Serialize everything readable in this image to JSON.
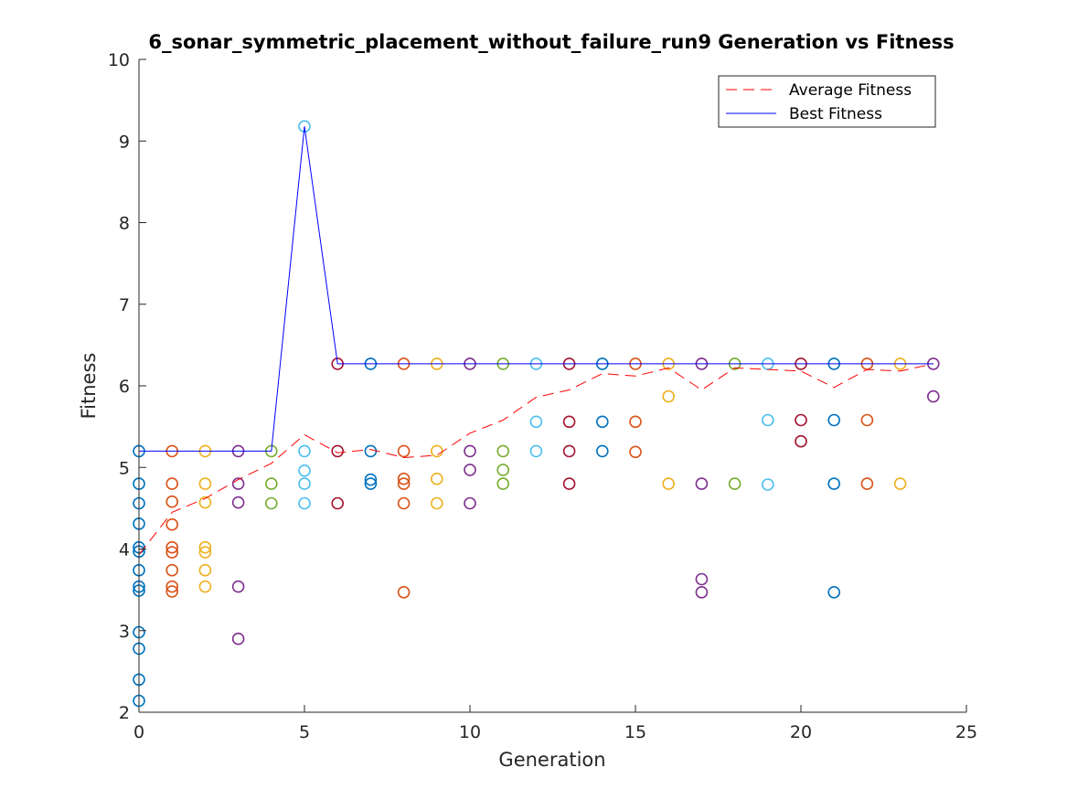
{
  "chart_data": {
    "type": "scatter",
    "title": "6_sonar_symmetric_placement_without_failure_run9 Generation vs Fitness",
    "xlabel": "Generation",
    "ylabel": "Fitness",
    "xlim": [
      0,
      25
    ],
    "ylim": [
      2,
      10
    ],
    "xticks": [
      0,
      5,
      10,
      15,
      20,
      25
    ],
    "yticks": [
      2,
      3,
      4,
      5,
      6,
      7,
      8,
      9,
      10
    ],
    "grid": false,
    "legend_position": "top-right",
    "colors": {
      "average_line": "#ff0000",
      "best_line": "#0000ff",
      "axis": "#262626",
      "palette": [
        "#0072bd",
        "#d95319",
        "#edb120",
        "#7e2f8e",
        "#77ac30",
        "#4dbeee",
        "#a2142f"
      ]
    },
    "series": [
      {
        "name": "Average Fitness",
        "style": "dashed-line",
        "x": [
          0,
          1,
          2,
          3,
          4,
          5,
          6,
          7,
          8,
          9,
          10,
          11,
          12,
          13,
          14,
          15,
          16,
          17,
          18,
          19,
          20,
          21,
          22,
          23,
          24
        ],
        "y": [
          3.93,
          4.45,
          4.62,
          4.85,
          5.05,
          5.4,
          5.18,
          5.22,
          5.12,
          5.15,
          5.42,
          5.58,
          5.86,
          5.95,
          6.15,
          6.12,
          6.22,
          5.95,
          6.22,
          6.2,
          6.18,
          5.98,
          6.2,
          6.18,
          6.27
        ]
      },
      {
        "name": "Best Fitness",
        "style": "solid-line",
        "x": [
          0,
          1,
          2,
          3,
          4,
          5,
          6,
          7,
          8,
          9,
          10,
          11,
          12,
          13,
          14,
          15,
          16,
          17,
          18,
          19,
          20,
          21,
          22,
          23,
          24
        ],
        "y": [
          5.2,
          5.2,
          5.2,
          5.2,
          5.2,
          9.18,
          6.27,
          6.27,
          6.27,
          6.27,
          6.27,
          6.27,
          6.27,
          6.27,
          6.27,
          6.27,
          6.27,
          6.27,
          6.27,
          6.27,
          6.27,
          6.27,
          6.27,
          6.27,
          6.27
        ]
      }
    ],
    "population": [
      {
        "generation": 0,
        "color": "#0072bd",
        "values": [
          5.2,
          4.8,
          4.56,
          4.31,
          4.02,
          3.97,
          3.74,
          3.54,
          3.49,
          2.98,
          2.78,
          2.4,
          2.14
        ]
      },
      {
        "generation": 1,
        "color": "#d95319",
        "values": [
          5.2,
          4.8,
          4.58,
          4.3,
          4.02,
          3.96,
          3.74,
          3.54,
          3.48
        ]
      },
      {
        "generation": 2,
        "color": "#edb120",
        "values": [
          5.2,
          4.8,
          4.57,
          4.02,
          3.96,
          3.74,
          3.54
        ]
      },
      {
        "generation": 3,
        "color": "#7e2f8e",
        "values": [
          5.2,
          4.8,
          4.57,
          3.54,
          2.9
        ]
      },
      {
        "generation": 4,
        "color": "#77ac30",
        "values": [
          5.2,
          4.8,
          4.56
        ]
      },
      {
        "generation": 5,
        "color": "#4dbeee",
        "values": [
          9.18,
          5.2,
          4.96,
          4.8,
          4.56
        ]
      },
      {
        "generation": 6,
        "color": "#a2142f",
        "values": [
          6.27,
          5.2,
          4.56
        ]
      },
      {
        "generation": 7,
        "color": "#0072bd",
        "values": [
          6.27,
          5.2,
          4.85,
          4.8
        ]
      },
      {
        "generation": 8,
        "color": "#d95319",
        "values": [
          6.27,
          5.2,
          4.86,
          4.8,
          4.56,
          3.47
        ]
      },
      {
        "generation": 9,
        "color": "#edb120",
        "values": [
          6.27,
          5.2,
          4.86,
          4.56
        ]
      },
      {
        "generation": 10,
        "color": "#7e2f8e",
        "values": [
          6.27,
          5.2,
          4.97,
          4.56
        ]
      },
      {
        "generation": 11,
        "color": "#77ac30",
        "values": [
          6.27,
          5.2,
          4.97,
          4.8
        ]
      },
      {
        "generation": 12,
        "color": "#4dbeee",
        "values": [
          6.27,
          5.56,
          5.2
        ]
      },
      {
        "generation": 13,
        "color": "#a2142f",
        "values": [
          6.27,
          5.56,
          5.2,
          4.8
        ]
      },
      {
        "generation": 14,
        "color": "#0072bd",
        "values": [
          6.27,
          5.56,
          5.2
        ]
      },
      {
        "generation": 15,
        "color": "#d95319",
        "values": [
          6.27,
          5.56,
          5.19
        ]
      },
      {
        "generation": 16,
        "color": "#edb120",
        "values": [
          6.27,
          5.87,
          4.8
        ]
      },
      {
        "generation": 17,
        "color": "#7e2f8e",
        "values": [
          6.27,
          4.8,
          3.63,
          3.47
        ]
      },
      {
        "generation": 18,
        "color": "#77ac30",
        "values": [
          6.27,
          4.8
        ]
      },
      {
        "generation": 19,
        "color": "#4dbeee",
        "values": [
          6.27,
          5.58,
          4.79
        ]
      },
      {
        "generation": 20,
        "color": "#a2142f",
        "values": [
          6.27,
          5.58,
          5.32
        ]
      },
      {
        "generation": 21,
        "color": "#0072bd",
        "values": [
          6.27,
          5.58,
          4.8,
          3.47
        ]
      },
      {
        "generation": 22,
        "color": "#d95319",
        "values": [
          6.27,
          5.58,
          4.8
        ]
      },
      {
        "generation": 23,
        "color": "#edb120",
        "values": [
          6.27,
          4.8
        ]
      },
      {
        "generation": 24,
        "color": "#7e2f8e",
        "values": [
          6.27,
          5.87
        ]
      }
    ]
  }
}
